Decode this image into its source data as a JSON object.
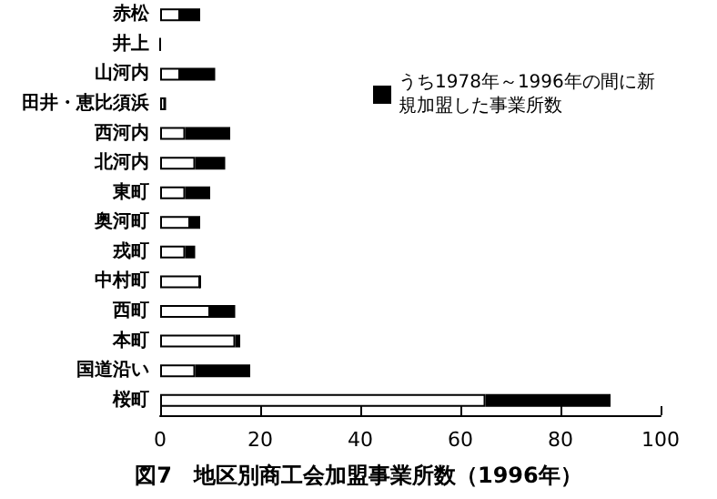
{
  "chart_data": {
    "type": "bar",
    "orientation": "horizontal",
    "stacked": true,
    "title": "図7　地区別商工会加盟事業所数（1996年）",
    "categories": [
      "赤松",
      "井上",
      "山河内",
      "田井・恵比須浜",
      "西河内",
      "北河内",
      "東町",
      "奥河町",
      "戎町",
      "中村町",
      "西町",
      "本町",
      "国道沿い",
      "桜町"
    ],
    "series": [
      {
        "color": "#ffffff",
        "values": [
          4,
          0,
          4,
          1,
          5,
          7,
          5,
          6,
          5,
          8,
          10,
          15,
          7,
          65
        ]
      },
      {
        "name": "うち1978年～1996年の間に新規加盟した事業所数",
        "color": "#000000",
        "values": [
          4,
          0,
          7,
          0,
          9,
          6,
          5,
          2,
          2,
          0,
          5,
          1,
          11,
          25
        ]
      }
    ],
    "xlim": [
      0,
      100
    ],
    "xticks": [
      0,
      20,
      40,
      60,
      80,
      100
    ],
    "grid": false,
    "legend": "top right"
  }
}
